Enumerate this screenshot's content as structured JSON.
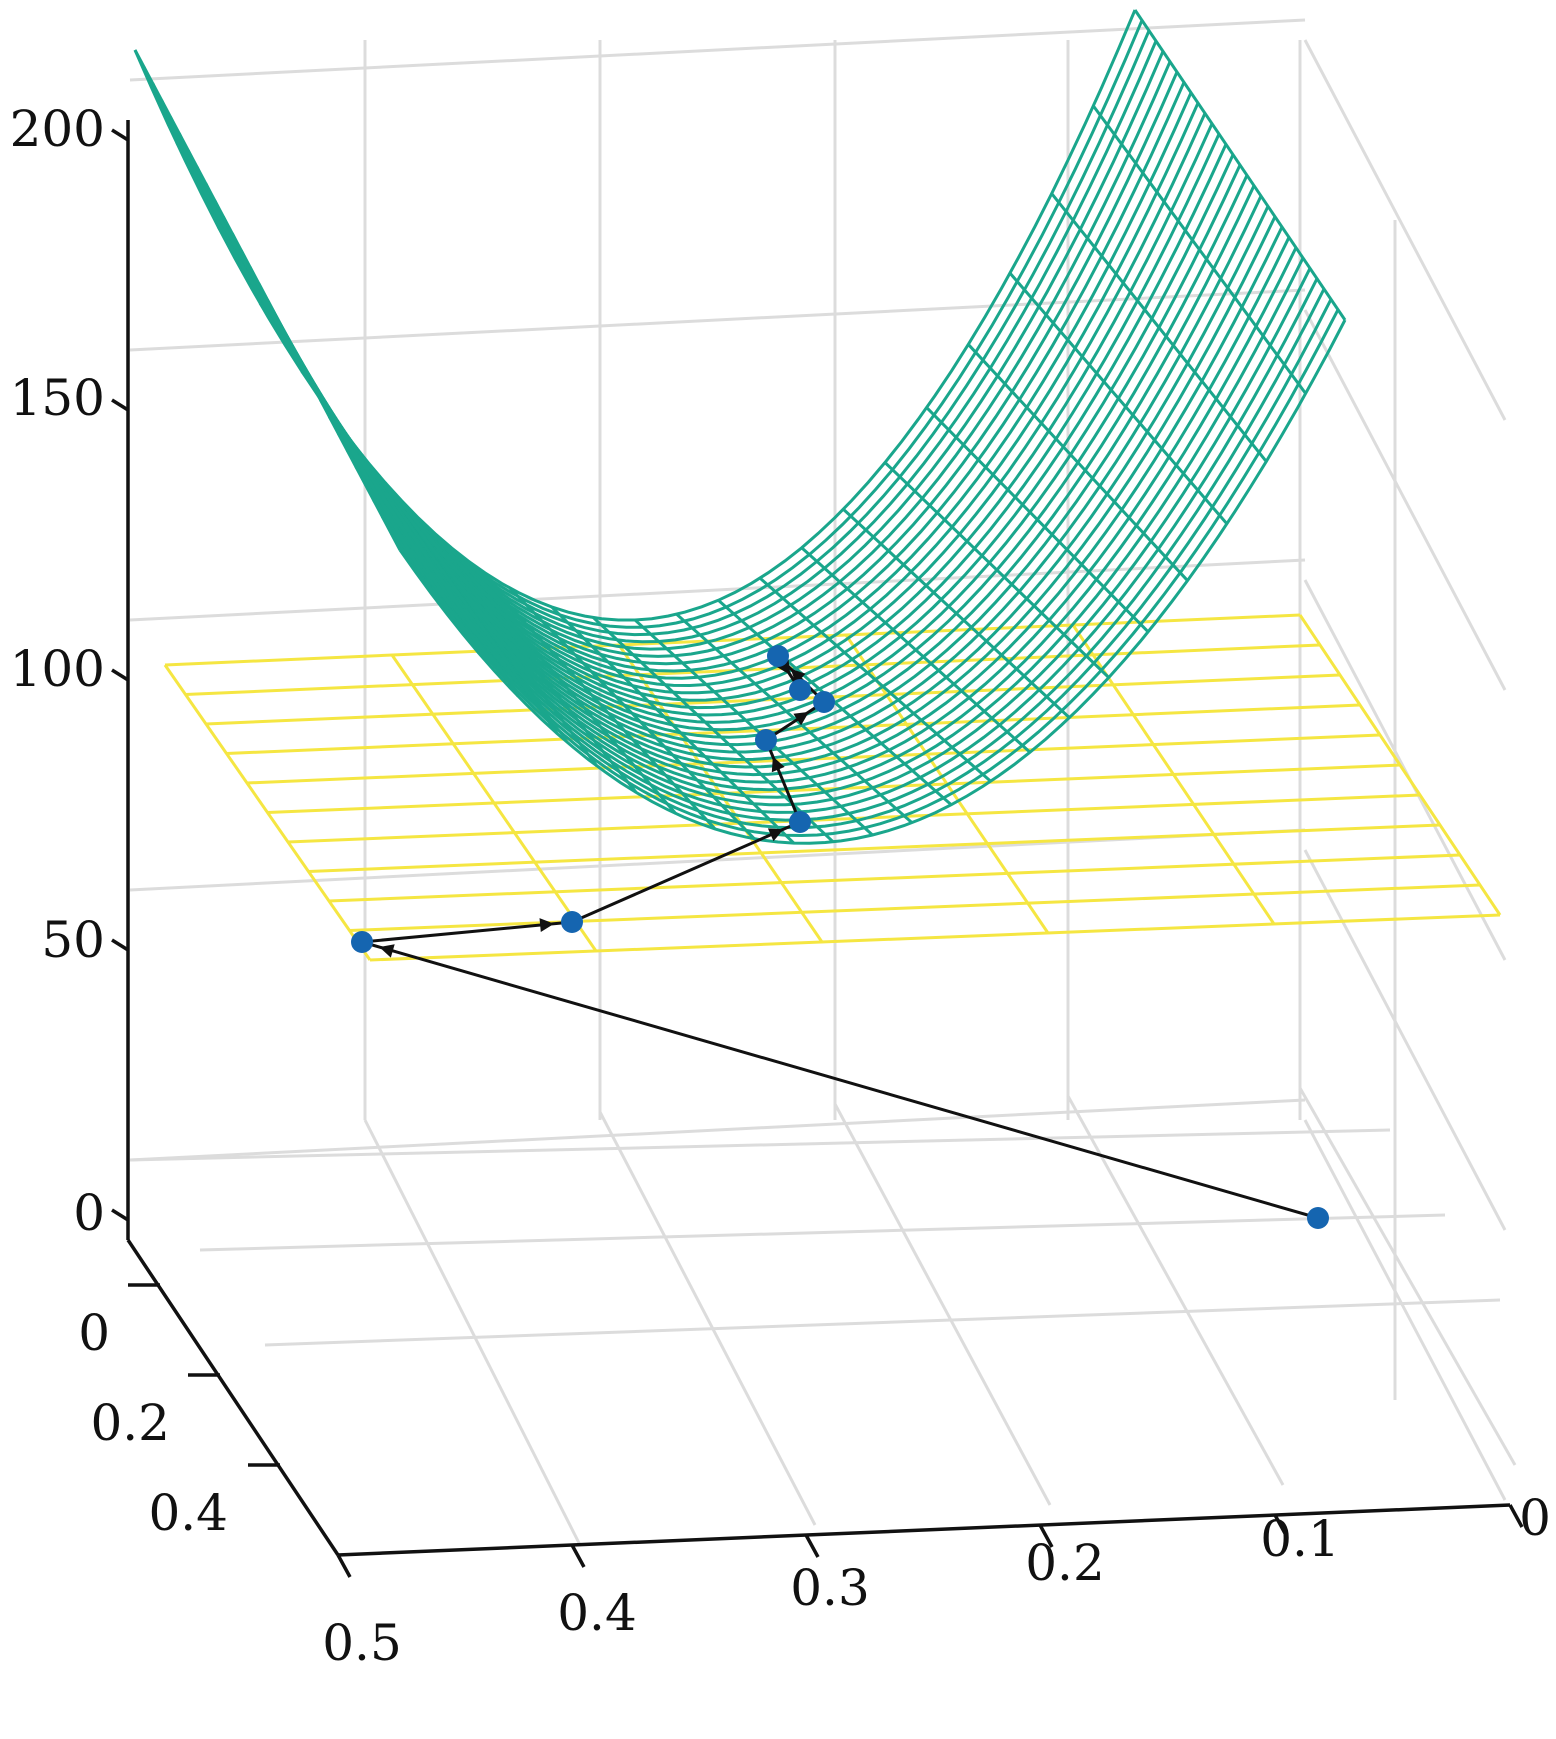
{
  "chart_data": {
    "type": "surface",
    "z_axis": {
      "ticks": [
        "0",
        "50",
        "100",
        "150",
        "200"
      ],
      "values": [
        0,
        50,
        100,
        150,
        200
      ]
    },
    "x_axis": {
      "ticks": [
        "0.5",
        "0.4",
        "0.3",
        "0.2",
        "0.1",
        "0"
      ],
      "values": [
        0.5,
        0.4,
        0.3,
        0.2,
        0.1,
        0
      ]
    },
    "y_axis": {
      "ticks": [
        "0",
        "0.2",
        "0.4"
      ],
      "values": [
        0,
        0.2,
        0.4
      ]
    },
    "grid": true,
    "surface": {
      "name": "",
      "color": "#1aa68c",
      "style": "mesh",
      "description_shape": "parabolic trough"
    },
    "plane": {
      "color": "#f5e642",
      "z": 50,
      "style": "mesh"
    },
    "iterates": {
      "marker_color": "#1565b0",
      "line_color": "#111111",
      "points": [
        {
          "x": 0.02,
          "y": 0.0,
          "z": 0
        },
        {
          "x": 0.5,
          "y": 0.0,
          "z": 50
        },
        {
          "x": 0.4,
          "y": 0.0,
          "z": 50
        },
        {
          "x": 0.26,
          "y": 0.05,
          "z": 62
        },
        {
          "x": 0.25,
          "y": 0.12,
          "z": 88
        },
        {
          "x": 0.29,
          "y": 0.15,
          "z": 94
        },
        {
          "x": 0.29,
          "y": 0.2,
          "z": 104
        },
        {
          "x": 0.3,
          "y": 0.17,
          "z": 98
        }
      ]
    }
  }
}
